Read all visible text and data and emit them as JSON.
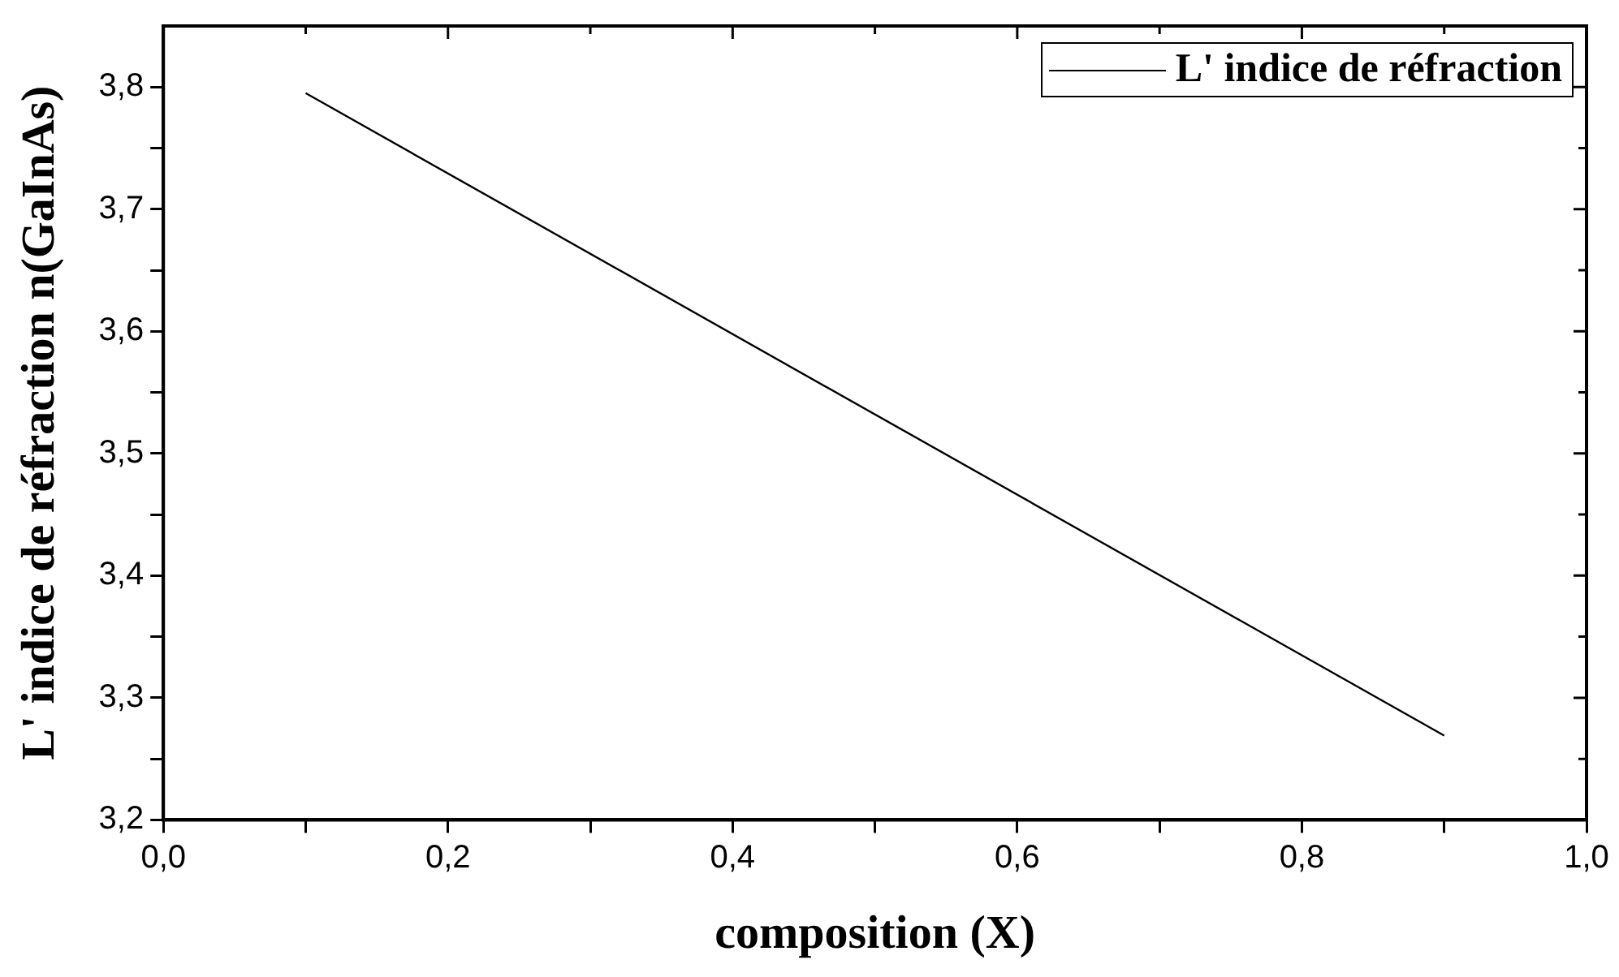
{
  "chart_data": {
    "type": "line",
    "xlabel": "composition (X)",
    "ylabel": "L' indice de réfraction n(GaInAs)",
    "x": [
      0.1,
      0.9
    ],
    "series": [
      {
        "name": "L' indice de réfraction",
        "color": "#000000",
        "values": [
          3.795,
          3.269
        ]
      }
    ],
    "xlim": [
      0,
      1
    ],
    "xticks": [
      {
        "value": 0,
        "label": "0,0"
      },
      {
        "value": 0.1,
        "label": null
      },
      {
        "value": 0.2,
        "label": "0,2"
      },
      {
        "value": 0.3,
        "label": null
      },
      {
        "value": 0.4,
        "label": "0,4"
      },
      {
        "value": 0.5,
        "label": null
      },
      {
        "value": 0.6,
        "label": "0,6"
      },
      {
        "value": 0.7,
        "label": null
      },
      {
        "value": 0.8,
        "label": "0,8"
      },
      {
        "value": 0.9,
        "label": null
      },
      {
        "value": 1,
        "label": "1,0"
      }
    ],
    "ylim": [
      3.2,
      3.85
    ],
    "yticks": [
      {
        "value": 3.2,
        "label": "3,2"
      },
      {
        "value": 3.25,
        "label": null
      },
      {
        "value": 3.3,
        "label": "3,3"
      },
      {
        "value": 3.35,
        "label": null
      },
      {
        "value": 3.4,
        "label": "3,4"
      },
      {
        "value": 3.45,
        "label": null
      },
      {
        "value": 3.5,
        "label": "3,5"
      },
      {
        "value": 3.55,
        "label": null
      },
      {
        "value": 3.6,
        "label": "3,6"
      },
      {
        "value": 3.65,
        "label": null
      },
      {
        "value": 3.7,
        "label": "3,7"
      },
      {
        "value": 3.75,
        "label": null
      },
      {
        "value": 3.8,
        "label": "3,8"
      }
    ],
    "grid": false,
    "legend": "top right",
    "marker": "none",
    "line_style": "solid"
  }
}
